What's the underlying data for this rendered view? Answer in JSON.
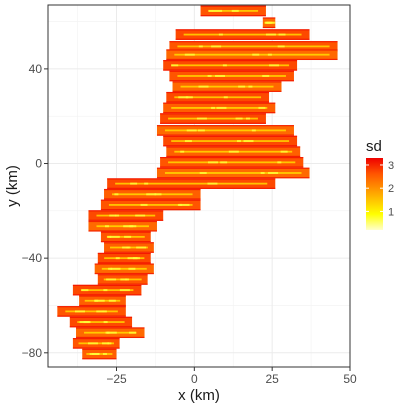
{
  "chart_data": {
    "type": "heatmap",
    "title": "",
    "xlabel": "x (km)",
    "ylabel": "y (km)",
    "x_ticks": [
      -25,
      0,
      25,
      50
    ],
    "y_ticks": [
      -80,
      -40,
      0,
      40
    ],
    "x_tick_labels": [
      "−25",
      "0",
      "25",
      "50"
    ],
    "y_tick_labels": [
      "−80",
      "−40",
      "0",
      "40"
    ],
    "xlim": [
      -47,
      50
    ],
    "ylim": [
      -86,
      67
    ],
    "grid": true,
    "legend": {
      "title": "sd",
      "position": "right",
      "ticks": [
        1,
        2,
        3
      ],
      "tick_labels": [
        "1",
        "2",
        "3"
      ],
      "range": [
        0.2,
        3.3
      ],
      "colors": [
        "#ffffcc",
        "#ffff00",
        "#ffaa00",
        "#ff5500",
        "#ee0000"
      ]
    },
    "strips": [
      {
        "y": 64.5,
        "x0": 2,
        "x1": 23,
        "sd": 2.6
      },
      {
        "y": 59.5,
        "x0": 22,
        "x1": 26,
        "sd": 2.4
      },
      {
        "y": 54.5,
        "x0": -6,
        "x1": 37,
        "sd": 2.7
      },
      {
        "y": 49.5,
        "x0": -8,
        "x1": 46,
        "sd": 2.6
      },
      {
        "y": 46,
        "x0": -9,
        "x1": 46,
        "sd": 2.4
      },
      {
        "y": 41.5,
        "x0": -10,
        "x1": 33,
        "sd": 2.7
      },
      {
        "y": 37,
        "x0": -8,
        "x1": 32,
        "sd": 2.6
      },
      {
        "y": 32.5,
        "x0": -7,
        "x1": 28,
        "sd": 2.4
      },
      {
        "y": 28,
        "x0": -9,
        "x1": 24,
        "sd": 2.7
      },
      {
        "y": 23.5,
        "x0": -10,
        "x1": 26,
        "sd": 2.5
      },
      {
        "y": 19,
        "x0": -11,
        "x1": 23,
        "sd": 2.7
      },
      {
        "y": 14,
        "x0": -12,
        "x1": 32,
        "sd": 2.4
      },
      {
        "y": 9.5,
        "x0": -10,
        "x1": 33,
        "sd": 2.7
      },
      {
        "y": 5,
        "x0": -9,
        "x1": 34,
        "sd": 2.5
      },
      {
        "y": 0.5,
        "x0": -11,
        "x1": 35,
        "sd": 2.6
      },
      {
        "y": -4,
        "x0": -12,
        "x1": 37,
        "sd": 2.4
      },
      {
        "y": -8.5,
        "x0": -28,
        "x1": 26,
        "sd": 2.7
      },
      {
        "y": -13,
        "x0": -29,
        "x1": 2,
        "sd": 2.5
      },
      {
        "y": -17.5,
        "x0": -30,
        "x1": 2,
        "sd": 2.6
      },
      {
        "y": -22,
        "x0": -34,
        "x1": -10,
        "sd": 2.7
      },
      {
        "y": -26.5,
        "x0": -34,
        "x1": -12,
        "sd": 2.4
      },
      {
        "y": -31,
        "x0": -30,
        "x1": -14,
        "sd": 2.6
      },
      {
        "y": -35.5,
        "x0": -29,
        "x1": -13,
        "sd": 2.5
      },
      {
        "y": -40,
        "x0": -31,
        "x1": -14,
        "sd": 2.7
      },
      {
        "y": -44.5,
        "x0": -32,
        "x1": -13,
        "sd": 2.4
      },
      {
        "y": -49,
        "x0": -31,
        "x1": -15,
        "sd": 2.6
      },
      {
        "y": -53.5,
        "x0": -39,
        "x1": -17,
        "sd": 2.7
      },
      {
        "y": -58,
        "x0": -37,
        "x1": -22,
        "sd": 2.5
      },
      {
        "y": -62.5,
        "x0": -44,
        "x1": -22,
        "sd": 2.6
      },
      {
        "y": -67,
        "x0": -40,
        "x1": -20,
        "sd": 2.7
      },
      {
        "y": -71.5,
        "x0": -38,
        "x1": -16,
        "sd": 2.4
      },
      {
        "y": -76,
        "x0": -39,
        "x1": -24,
        "sd": 2.6
      },
      {
        "y": -80.5,
        "x0": -36,
        "x1": -25,
        "sd": 2.5
      }
    ]
  }
}
